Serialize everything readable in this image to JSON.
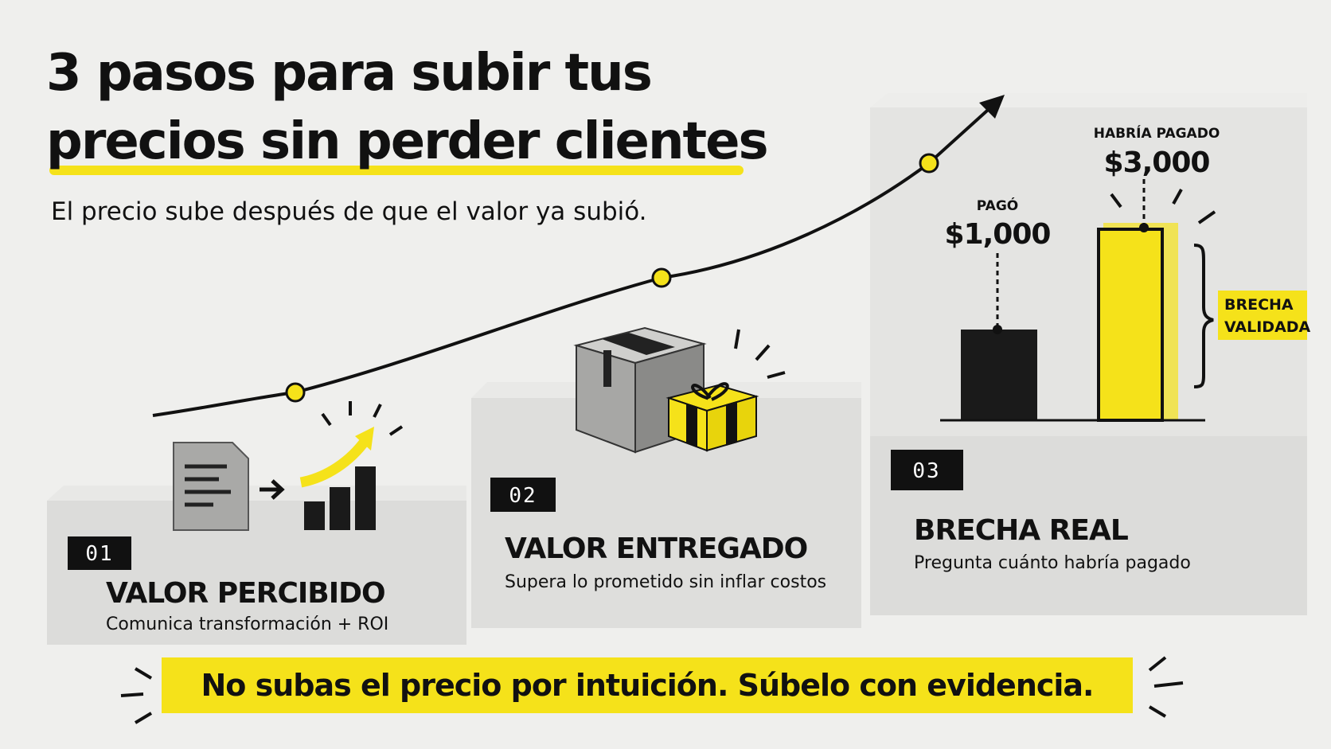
{
  "header": {
    "title_lines": [
      "3 pasos para subir tus",
      "precios sin perder clientes"
    ],
    "subtitle": "El precio sube después de que el valor ya subió."
  },
  "steps": [
    {
      "number": "01",
      "title": "VALOR PERCIBIDO",
      "description": "Comunica  transformación + ROI"
    },
    {
      "number": "02",
      "title": "VALOR ENTREGADO",
      "description": "Supera lo prometido sin inflar costos"
    },
    {
      "number": "03",
      "title": "BRECHA REAL",
      "description": "Pregunta cuánto habría pagado"
    }
  ],
  "comparison": {
    "paid_label": "PAGÓ",
    "paid_amount": "$1,000",
    "would_pay_label": "HABRÍA PAGADO",
    "would_pay_amount": "$3,000",
    "gap_label_lines": [
      "BRECHA",
      "VALIDADA"
    ]
  },
  "footer": "No subas el precio por intuición. Súbelo con evidencia."
}
